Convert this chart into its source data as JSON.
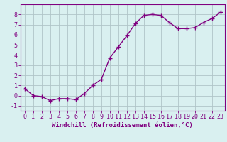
{
  "x": [
    0,
    1,
    2,
    3,
    4,
    5,
    6,
    7,
    8,
    9,
    10,
    11,
    12,
    13,
    14,
    15,
    16,
    17,
    18,
    19,
    20,
    21,
    22,
    23
  ],
  "y": [
    0.7,
    0.0,
    -0.1,
    -0.5,
    -0.3,
    -0.3,
    -0.4,
    0.2,
    1.0,
    1.6,
    3.7,
    4.8,
    5.9,
    7.1,
    7.9,
    8.0,
    7.9,
    7.2,
    6.6,
    6.6,
    6.7,
    7.2,
    7.6,
    8.2
  ],
  "line_color": "#800080",
  "marker": "+",
  "marker_size": 4,
  "marker_linewidth": 1.0,
  "background_color": "#d9f0f0",
  "grid_color": "#b0c4c8",
  "xlabel": "Windchill (Refroidissement éolien,°C)",
  "xlabel_fontsize": 6.5,
  "ylabel_ticks": [
    -1,
    0,
    1,
    2,
    3,
    4,
    5,
    6,
    7,
    8
  ],
  "xtick_labels": [
    "0",
    "1",
    "2",
    "3",
    "4",
    "5",
    "6",
    "7",
    "8",
    "9",
    "10",
    "11",
    "12",
    "13",
    "14",
    "15",
    "16",
    "17",
    "18",
    "19",
    "20",
    "21",
    "22",
    "23"
  ],
  "ylim": [
    -1.5,
    9.0
  ],
  "xlim": [
    -0.5,
    23.5
  ],
  "tick_fontsize": 6,
  "line_width": 1.0
}
